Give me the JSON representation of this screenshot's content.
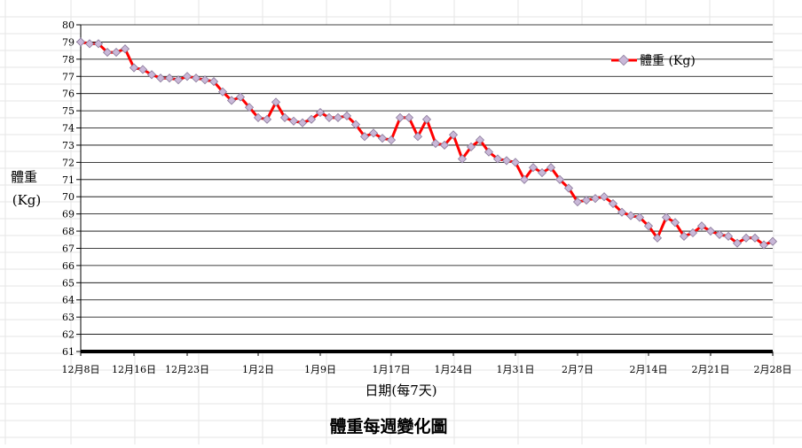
{
  "chart_data": {
    "type": "line",
    "title": "體重每週變化圖",
    "ylabel": [
      "體重",
      "(Kg)"
    ],
    "xlabel": "日期(每7天)",
    "ylim": [
      61,
      80
    ],
    "yticks": [
      61,
      62,
      63,
      64,
      65,
      66,
      67,
      68,
      69,
      70,
      71,
      72,
      73,
      74,
      75,
      76,
      77,
      78,
      79,
      80
    ],
    "grid": true,
    "legend_position": "top-right",
    "x_start_label": "12月8日",
    "xtick_labels": [
      "12月8日",
      "12月16日",
      "12月23日",
      "1月2日",
      "1月9日",
      "1月17日",
      "1月24日",
      "1月31日",
      "2月7日",
      "2月14日",
      "2月21日",
      "2月28日"
    ],
    "xtick_index": [
      0,
      6,
      12,
      20,
      27,
      35,
      42,
      49,
      56,
      64,
      71,
      78
    ],
    "series": [
      {
        "name": "體重 (Kg)",
        "color": "#ff0000",
        "marker_color": "#c9b8d8",
        "values": [
          79.0,
          78.9,
          78.9,
          78.4,
          78.4,
          78.6,
          77.5,
          77.4,
          77.1,
          76.9,
          76.9,
          76.8,
          77.0,
          76.9,
          76.8,
          76.7,
          76.1,
          75.6,
          75.8,
          75.2,
          74.6,
          74.5,
          75.5,
          74.6,
          74.4,
          74.3,
          74.5,
          74.9,
          74.6,
          74.6,
          74.7,
          74.2,
          73.5,
          73.7,
          73.4,
          73.3,
          74.6,
          74.6,
          73.5,
          74.5,
          73.1,
          73.0,
          73.6,
          72.2,
          72.9,
          73.3,
          72.6,
          72.2,
          72.1,
          72.0,
          71.0,
          71.7,
          71.4,
          71.7,
          71.0,
          70.5,
          69.7,
          69.8,
          69.9,
          70.0,
          69.6,
          69.1,
          68.9,
          68.8,
          68.3,
          67.6,
          68.8,
          68.5,
          67.7,
          67.9,
          68.3,
          68.0,
          67.8,
          67.7,
          67.3,
          67.6,
          67.6,
          67.2,
          67.4
        ]
      }
    ]
  }
}
